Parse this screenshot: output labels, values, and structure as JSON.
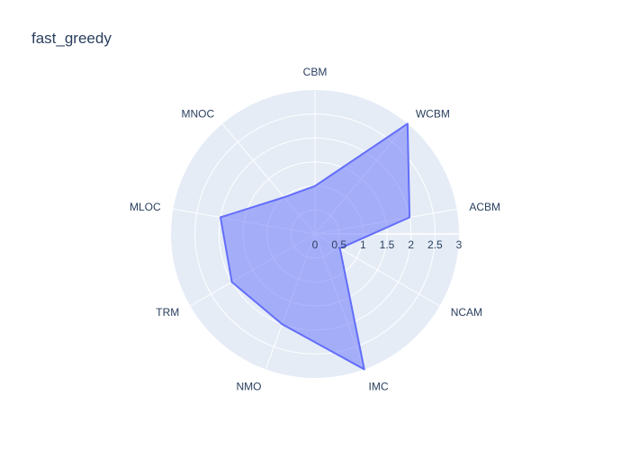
{
  "chart_data": {
    "type": "radar",
    "title": "fast_greedy",
    "categories": [
      "CBM",
      "WCBM",
      "ACBM",
      "NCAM",
      "IMC",
      "NMO",
      "TRM",
      "MLOC",
      "MNOC"
    ],
    "values": [
      1.0,
      3.0,
      2.0,
      0.6,
      3.0,
      2.0,
      2.0,
      2.0,
      1.0
    ],
    "radial_range": [
      0,
      3
    ],
    "radial_ticks": [
      "0",
      "0.5",
      "1",
      "1.5",
      "2",
      "2.5",
      "3"
    ],
    "grid": true,
    "colors": {
      "polar_bg": "#e5ecf6",
      "fill": "rgba(99,110,250,0.5)",
      "line": "#636efa",
      "text": "#2a3f5f"
    }
  }
}
